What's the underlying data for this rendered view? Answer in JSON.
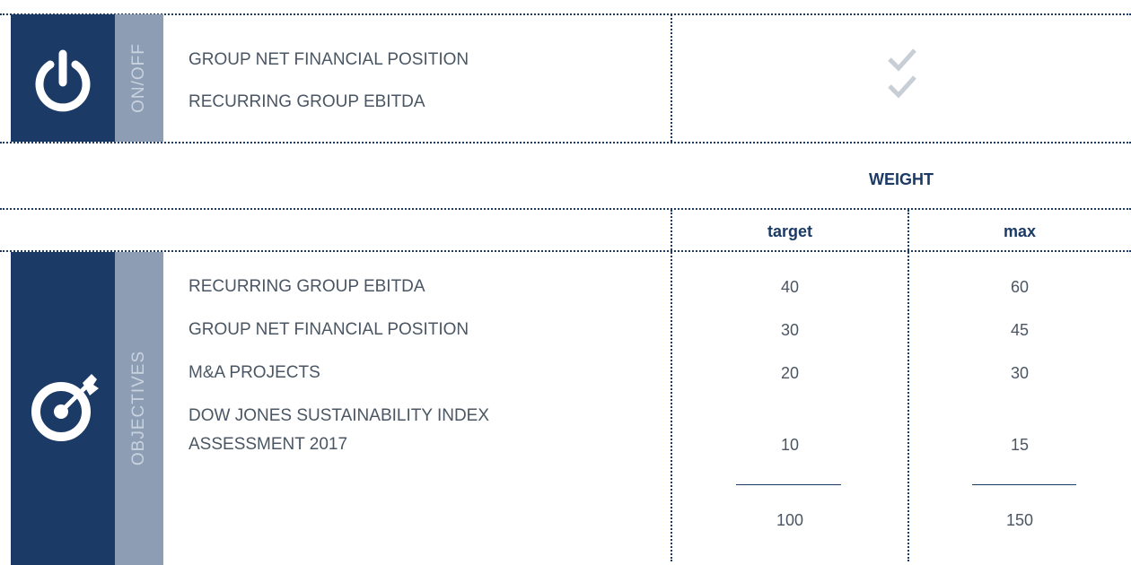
{
  "onoff": {
    "label": "ON/OFF",
    "items": [
      "GROUP NET FINANCIAL POSITION",
      "RECURRING GROUP EBITDA"
    ]
  },
  "weight": {
    "title": "WEIGHT",
    "columns": [
      "target",
      "max"
    ]
  },
  "objectives": {
    "label": "OBJECTIVES",
    "rows": [
      {
        "name": "RECURRING GROUP EBITDA",
        "target": "40",
        "max": "60"
      },
      {
        "name": "GROUP NET FINANCIAL POSITION",
        "target": "30",
        "max": "45"
      },
      {
        "name": "M&A PROJECTS",
        "target": "20",
        "max": "30"
      },
      {
        "name": "DOW JONES SUSTAINABILITY INDEX ASSESSMENT 2017",
        "target": "10",
        "max": "15"
      }
    ],
    "total": {
      "target": "100",
      "max": "150"
    }
  }
}
